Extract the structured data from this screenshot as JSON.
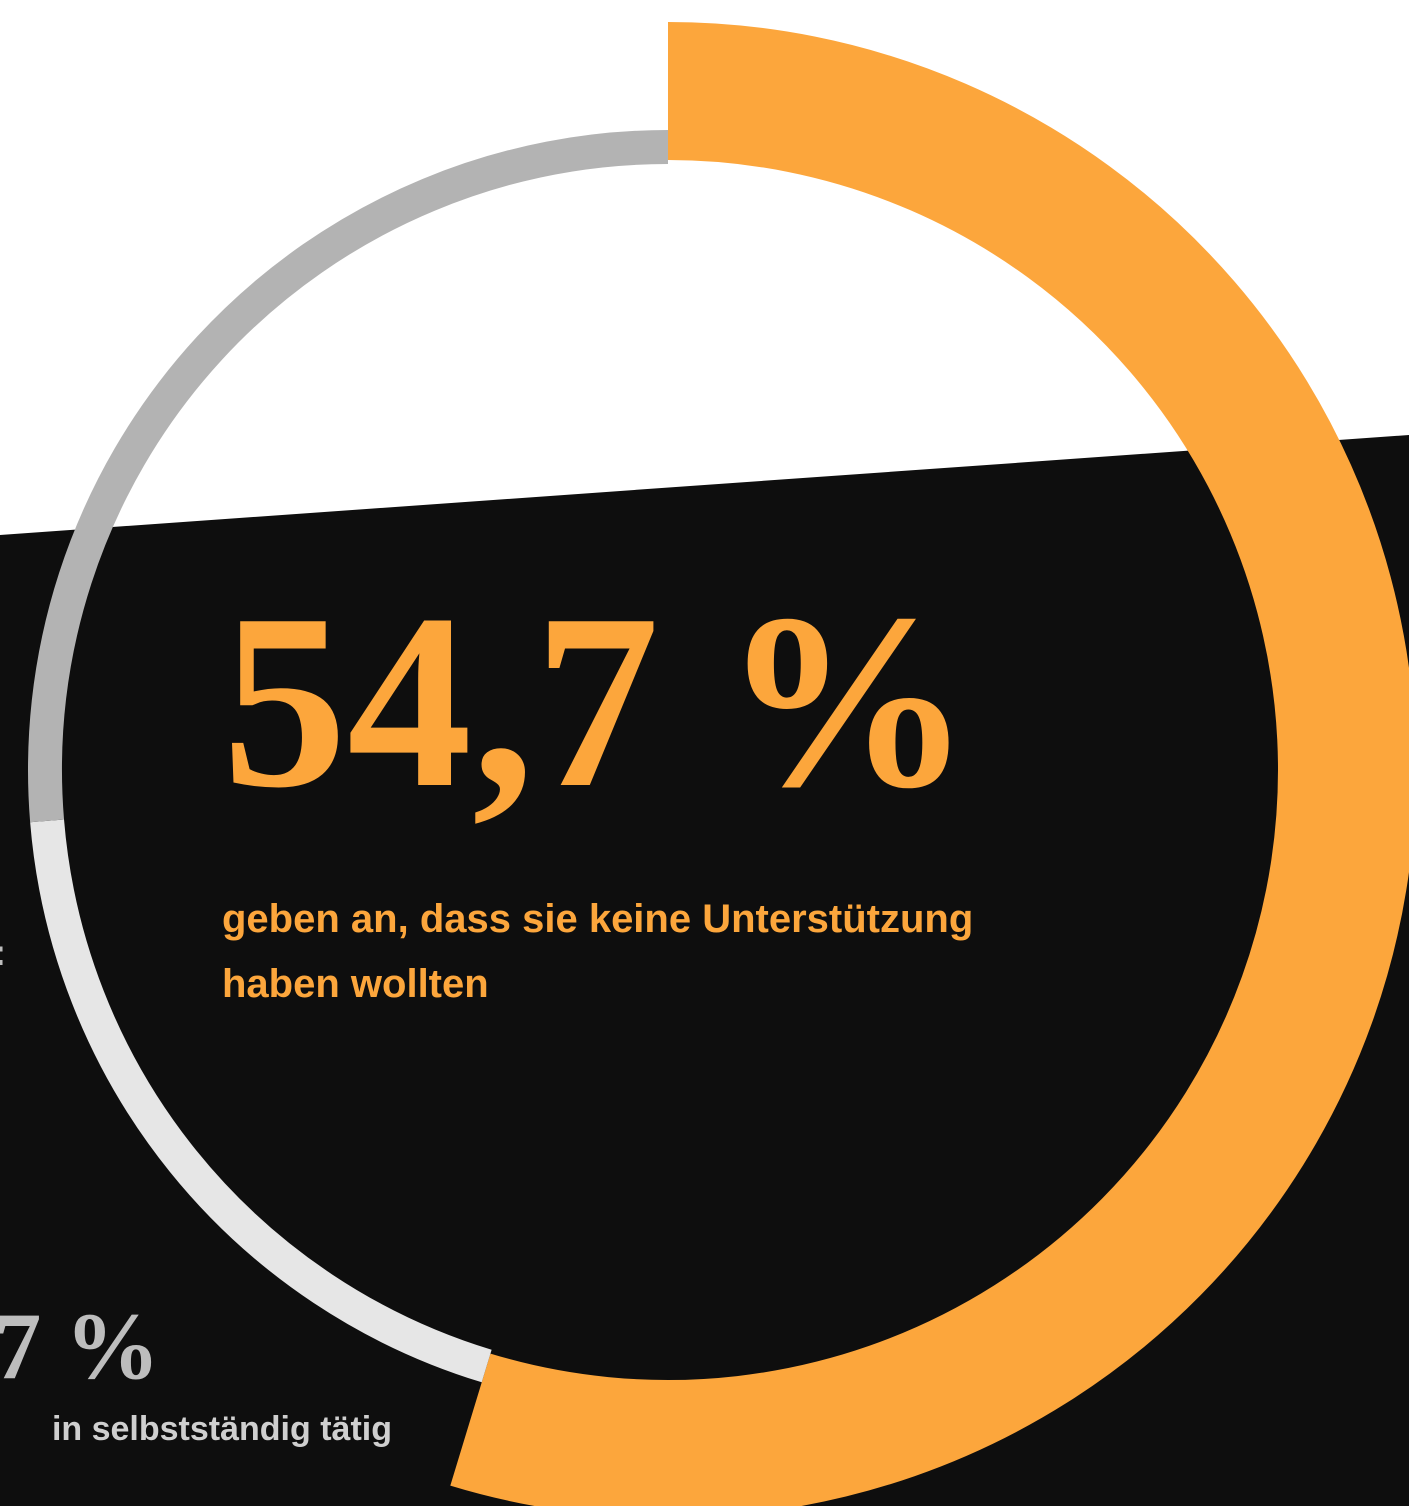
{
  "chart_data": {
    "type": "donut",
    "values": [
      54.7,
      19.0,
      26.3
    ],
    "colors": [
      "#fca63c",
      "#e6e6e6",
      "#b3b3b3"
    ],
    "value_labels": [
      "54,7 %",
      null,
      null
    ],
    "caption_lines": [
      "geben an, dass sie keine Unterstützung",
      "haben wollten"
    ],
    "side_texts": [
      ":",
      "7 %",
      "in selbstständig tätig"
    ]
  }
}
